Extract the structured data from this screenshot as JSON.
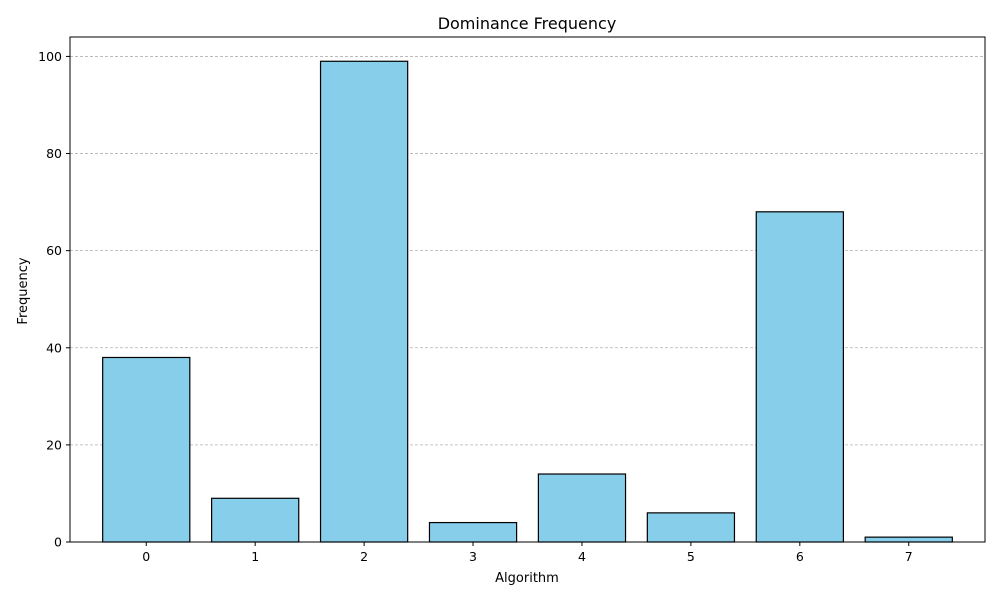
{
  "chart_data": {
    "type": "bar",
    "title": "Dominance Frequency",
    "xlabel": "Algorithm",
    "ylabel": "Frequency",
    "categories": [
      "0",
      "1",
      "2",
      "3",
      "4",
      "5",
      "6",
      "7"
    ],
    "values": [
      38,
      9,
      99,
      4,
      14,
      6,
      68,
      1
    ],
    "ylim": [
      0,
      104
    ],
    "yticks": [
      0,
      20,
      40,
      60,
      80,
      100
    ],
    "grid": "y-dashed",
    "bar_color": "#87ceeb",
    "edge_color": "#000000"
  }
}
